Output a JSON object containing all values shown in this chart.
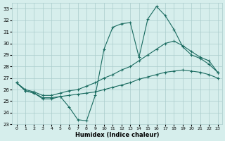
{
  "xlabel": "Humidex (Indice chaleur)",
  "background_color": "#d6eeec",
  "grid_color": "#aacccc",
  "line_color": "#1a6b60",
  "xlim": [
    -0.5,
    23.5
  ],
  "ylim": [
    23,
    33.5
  ],
  "yticks": [
    23,
    24,
    25,
    26,
    27,
    28,
    29,
    30,
    31,
    32,
    33
  ],
  "xticks": [
    0,
    1,
    2,
    3,
    4,
    5,
    6,
    7,
    8,
    9,
    10,
    11,
    12,
    13,
    14,
    15,
    16,
    17,
    18,
    19,
    20,
    21,
    22,
    23
  ],
  "line1_x": [
    0,
    1,
    2,
    3,
    4,
    5,
    6,
    7,
    8,
    9,
    10,
    11,
    12,
    13,
    14,
    15,
    16,
    17,
    18,
    19,
    20,
    21,
    22,
    23
  ],
  "line1_y": [
    26.6,
    25.9,
    25.7,
    25.2,
    25.2,
    25.4,
    24.5,
    23.4,
    23.3,
    25.5,
    29.5,
    31.4,
    31.7,
    31.8,
    28.8,
    32.1,
    33.2,
    32.4,
    31.2,
    29.7,
    29.0,
    28.7,
    28.2,
    27.5
  ],
  "line2_x": [
    0,
    1,
    2,
    3,
    4,
    5,
    6,
    7,
    8,
    9,
    10,
    11,
    12,
    13,
    14,
    15,
    16,
    17,
    18,
    19,
    20,
    21,
    22,
    23
  ],
  "line2_y": [
    26.6,
    26.0,
    25.8,
    25.5,
    25.5,
    25.7,
    25.9,
    26.0,
    26.3,
    26.6,
    27.0,
    27.3,
    27.7,
    28.0,
    28.5,
    29.0,
    29.5,
    30.0,
    30.2,
    29.8,
    29.3,
    28.8,
    28.5,
    27.5
  ],
  "line3_x": [
    0,
    1,
    2,
    3,
    4,
    5,
    6,
    7,
    8,
    9,
    10,
    11,
    12,
    13,
    14,
    15,
    16,
    17,
    18,
    19,
    20,
    21,
    22,
    23
  ],
  "line3_y": [
    26.6,
    25.9,
    25.7,
    25.3,
    25.3,
    25.4,
    25.5,
    25.6,
    25.7,
    25.8,
    26.0,
    26.2,
    26.4,
    26.6,
    26.9,
    27.1,
    27.3,
    27.5,
    27.6,
    27.7,
    27.6,
    27.5,
    27.3,
    27.0
  ]
}
